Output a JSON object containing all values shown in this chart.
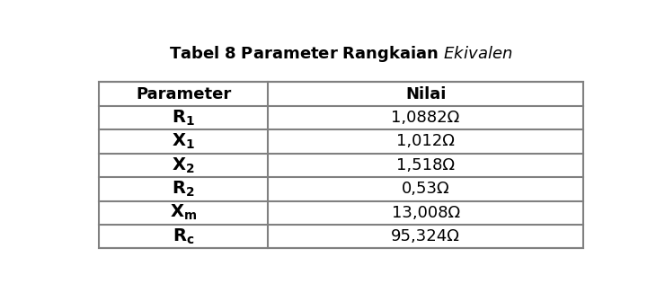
{
  "title_normal": "Tabel 8 Parameter Rangkaian ",
  "title_italic": "Ekivalen",
  "headers": [
    "Parameter",
    "Nilai"
  ],
  "param_labels": [
    [
      "R",
      "1"
    ],
    [
      "X",
      "1"
    ],
    [
      "X",
      "2"
    ],
    [
      "R",
      "2"
    ],
    [
      "X",
      "m"
    ],
    [
      "R",
      "c"
    ]
  ],
  "values": [
    "1,0882Ω",
    "1,012Ω",
    "1,518Ω",
    "0,53Ω",
    "13,008Ω",
    "95,324Ω"
  ],
  "col_split": 0.35,
  "bg_color": "#ffffff",
  "border_color": "#808080",
  "header_font_size": 13,
  "cell_font_size": 13,
  "title_font_size": 13
}
